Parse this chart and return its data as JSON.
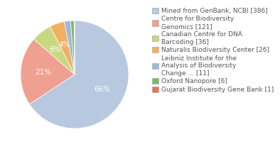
{
  "labels": [
    "Mined from GenBank, NCBI [386]",
    "Centre for Biodiversity\nGenomics [121]",
    "Canadian Centre for DNA\nBarcoding [36]",
    "Naturalis Biodiversity Center [26]",
    "Leibniz Institute for the\nAnalysis of Biodiversity\nChange ... [11]",
    "Oxford Nanopore [6]",
    "Gujarat Biodiversity Gene Bank [1]"
  ],
  "values": [
    386,
    121,
    36,
    26,
    11,
    6,
    1
  ],
  "colors": [
    "#b8c9df",
    "#f0a090",
    "#c8d880",
    "#f0b060",
    "#a0b8d8",
    "#80b870",
    "#e07858"
  ],
  "background_color": "#ffffff",
  "text_color": "#555555",
  "fontsize_legend": 6.5,
  "fontsize_pct": 7.5
}
